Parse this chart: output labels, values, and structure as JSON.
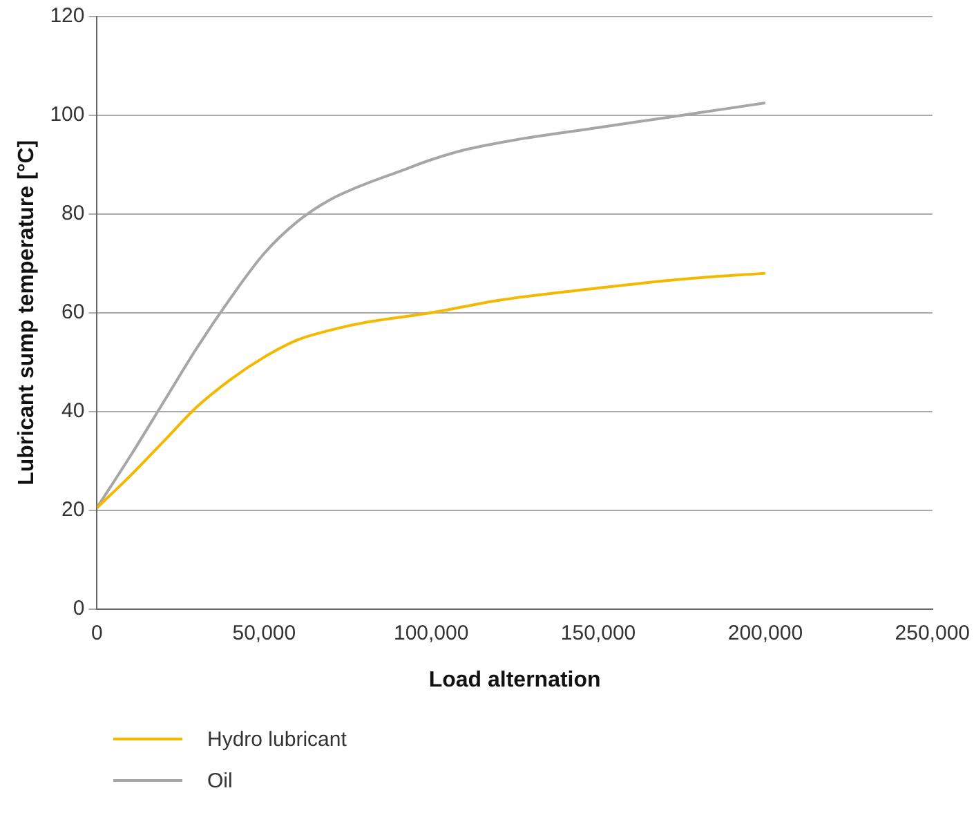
{
  "chart_data": {
    "type": "line",
    "xlabel": "Load alternation",
    "ylabel": "Lubricant sump temperature [°C]",
    "xlim": [
      0,
      250000
    ],
    "xticks": [
      0,
      {
        "value": 50000,
        "label": "50,000"
      },
      {
        "value": 100000,
        "label": "100,000"
      },
      {
        "value": 150000,
        "label": "150,000"
      },
      {
        "value": 200000,
        "label": "200,000"
      },
      {
        "value": 250000,
        "label": "250,000"
      }
    ],
    "ylim": [
      0,
      120
    ],
    "yticks": [
      0,
      20,
      40,
      60,
      80,
      100,
      120
    ],
    "grid": "y",
    "legend": "bottom left",
    "marker": "none",
    "line_style": "solid",
    "series": [
      {
        "name": "Hydro lubricant",
        "color": "#f5b800",
        "x": [
          0,
          10000,
          20000,
          30000,
          40000,
          50000,
          60000,
          70000,
          80000,
          100000,
          120000,
          150000,
          175000,
          200000
        ],
        "values": [
          20.5,
          27,
          34,
          41,
          46.5,
          51,
          54.5,
          56.5,
          58,
          60,
          62.5,
          65,
          66.8,
          68
        ]
      },
      {
        "name": "Oil",
        "color": "#a6a6a6",
        "x": [
          0,
          10000,
          20000,
          30000,
          40000,
          50000,
          60000,
          70000,
          80000,
          90000,
          100000,
          110000,
          125000,
          150000,
          175000,
          200000
        ],
        "values": [
          20.5,
          31,
          42,
          53,
          63,
          72,
          78.5,
          83,
          86,
          88.5,
          91,
          93,
          95,
          97.5,
          100,
          102.5
        ]
      }
    ]
  }
}
